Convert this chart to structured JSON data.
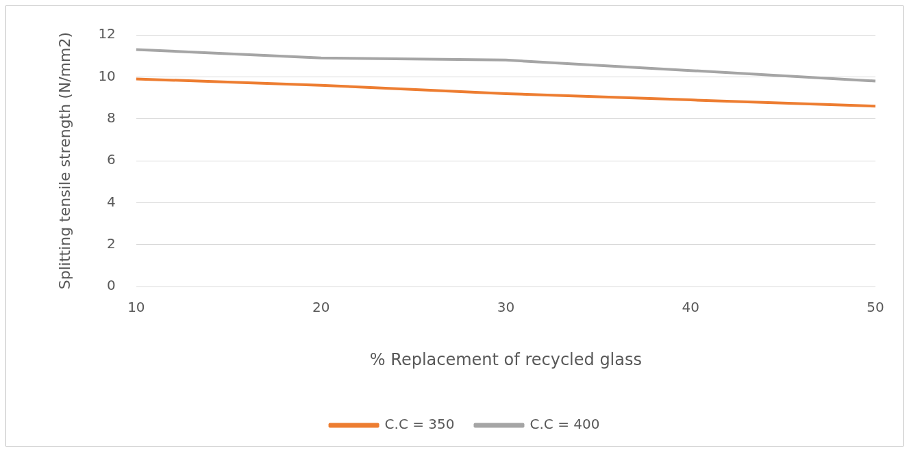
{
  "chart_data": {
    "type": "line",
    "xlabel": "% Replacement of recycled glass",
    "ylabel": "Splitting tensile strength (N/mm2)",
    "categories": [
      "10",
      "20",
      "30",
      "40",
      "50"
    ],
    "series": [
      {
        "name": "C.C = 350",
        "color": "#ed7d31",
        "values": [
          9.9,
          9.6,
          9.2,
          8.9,
          8.6
        ]
      },
      {
        "name": "C.C = 400",
        "color": "#a5a5a5",
        "values": [
          11.3,
          10.9,
          10.8,
          10.3,
          9.8
        ]
      }
    ],
    "ylim": [
      0,
      12
    ],
    "yticks": [
      0,
      2,
      4,
      6,
      8,
      10,
      12
    ],
    "grid": "y",
    "legend": "bottom",
    "marker": "none",
    "line_style": "solid"
  }
}
